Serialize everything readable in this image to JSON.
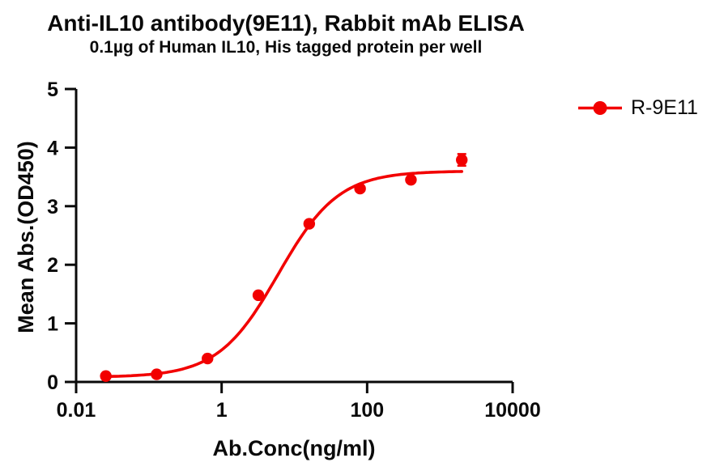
{
  "chart_data": {
    "type": "scatter",
    "title": "Anti-IL10 antibody(9E11), Rabbit mAb ELISA",
    "subtitle": "0.1µg of Human IL10, His tagged protein per well",
    "xlabel": "Ab.Conc(ng/ml)",
    "ylabel": "Mean Abs.(OD450)",
    "x_scale": "log10",
    "xlim": [
      0.01,
      10000
    ],
    "ylim": [
      0,
      5
    ],
    "grid": false,
    "x_ticks": [
      {
        "value": 0.01,
        "label": "0.01"
      },
      {
        "value": 1,
        "label": "1"
      },
      {
        "value": 100,
        "label": "100"
      },
      {
        "value": 10000,
        "label": "10000"
      }
    ],
    "y_ticks": [
      {
        "value": 0,
        "label": "0"
      },
      {
        "value": 1,
        "label": "1"
      },
      {
        "value": 2,
        "label": "2"
      },
      {
        "value": 3,
        "label": "3"
      },
      {
        "value": 4,
        "label": "4"
      },
      {
        "value": 5,
        "label": "5"
      }
    ],
    "legend": {
      "position": "right-top",
      "label": "R-9E11"
    },
    "series": [
      {
        "name": "R-9E11",
        "color": "#F20000",
        "marker": "filled-circle",
        "x": [
          0.0256,
          0.128,
          0.64,
          3.2,
          16,
          80,
          400,
          2000
        ],
        "y": [
          0.1,
          0.13,
          0.4,
          1.48,
          2.7,
          3.3,
          3.45,
          3.79
        ],
        "y_err": [
          0,
          0,
          0,
          0,
          0,
          0,
          0,
          0.1
        ],
        "curve_fit": {
          "model": "4PL",
          "bottom": 0.08,
          "top": 3.6,
          "ec50": 6.0,
          "hill": 1.05
        }
      }
    ],
    "axis_color": "#0a0a0a"
  }
}
